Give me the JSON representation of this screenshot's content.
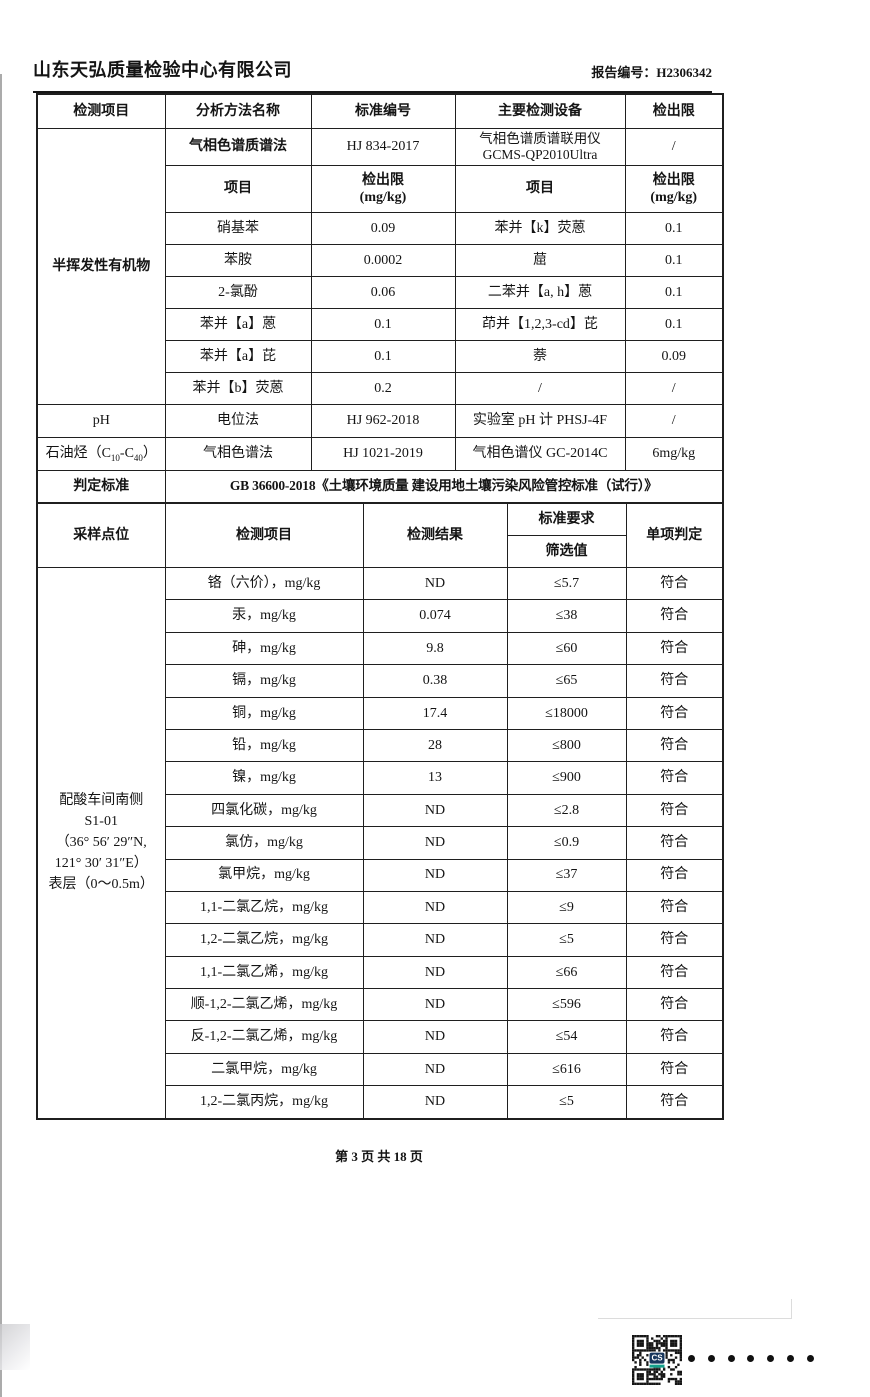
{
  "header": {
    "company": "山东天弘质量检验中心有限公司",
    "report_label": "报告编号：H2306342"
  },
  "method_table": {
    "col_headers": [
      "检测项目",
      "分析方法名称",
      "标准编号",
      "主要检测设备",
      "检出限"
    ],
    "svoc": {
      "group": "半挥发性有机物",
      "method": "气相色谱质谱法",
      "standard": "HJ 834-2017",
      "equipment_line1": "气相色谱质谱联用仪",
      "equipment_line2": "GCMS-QP2010Ultra",
      "limit": "/",
      "sub_item": "项目",
      "sub_limit_l1": "检出限",
      "sub_limit_l2": "(mg/kg)",
      "items": [
        {
          "item_l": "硝基苯",
          "limit_l": "0.09",
          "item_r": "苯并【k】荧蒽",
          "limit_r": "0.1"
        },
        {
          "item_l": "苯胺",
          "limit_l": "0.0002",
          "item_r": "䓛",
          "limit_r": "0.1"
        },
        {
          "item_l": "2-氯酚",
          "limit_l": "0.06",
          "item_r": "二苯并【a, h】蒽",
          "limit_r": "0.1"
        },
        {
          "item_l": "苯并【a】蒽",
          "limit_l": "0.1",
          "item_r": "茚并【1,2,3-cd】芘",
          "limit_r": "0.1"
        },
        {
          "item_l": "苯并【a】芘",
          "limit_l": "0.1",
          "item_r": "萘",
          "limit_r": "0.09"
        },
        {
          "item_l": "苯并【b】荧蒽",
          "limit_l": "0.2",
          "item_r": "/",
          "limit_r": "/"
        }
      ]
    },
    "ph": {
      "item": "pH",
      "method": "电位法",
      "standard": "HJ 962-2018",
      "equipment": "实验室 pH 计 PHSJ-4F",
      "limit": "/"
    },
    "tph": {
      "item_main": "石油烃（C",
      "sub1": "10",
      "item_mid": "-C",
      "sub2": "40",
      "item_end": "）",
      "method": "气相色谱法",
      "standard": "HJ 1021-2019",
      "equipment": "气相色谱仪 GC-2014C",
      "limit": "6mg/kg"
    },
    "criteria": {
      "label": "判定标准",
      "value": "GB 36600-2018《土壤环境质量 建设用地土壤污染风险管控标准（试行）》"
    }
  },
  "result_table": {
    "headers": {
      "point": "采样点位",
      "item": "检测项目",
      "result": "检测结果",
      "requirement": "标准要求",
      "screening": "筛选值",
      "judgment": "单项判定"
    },
    "sample_point": {
      "l1": "配酸车间南侧",
      "l2": "S1-01",
      "l3": "（36° 56′ 29″N,",
      "l4": "121° 30′ 31″E）",
      "l5": "表层（0～0.5m）"
    },
    "rows": [
      {
        "item": "铬（六价），mg/kg",
        "result": "ND",
        "screening": "≤5.7",
        "judgment": "符合"
      },
      {
        "item": "汞，mg/kg",
        "result": "0.074",
        "screening": "≤38",
        "judgment": "符合"
      },
      {
        "item": "砷，mg/kg",
        "result": "9.8",
        "screening": "≤60",
        "judgment": "符合"
      },
      {
        "item": "镉，mg/kg",
        "result": "0.38",
        "screening": "≤65",
        "judgment": "符合"
      },
      {
        "item": "铜，mg/kg",
        "result": "17.4",
        "screening": "≤18000",
        "judgment": "符合"
      },
      {
        "item": "铅，mg/kg",
        "result": "28",
        "screening": "≤800",
        "judgment": "符合"
      },
      {
        "item": "镍，mg/kg",
        "result": "13",
        "screening": "≤900",
        "judgment": "符合"
      },
      {
        "item": "四氯化碳，mg/kg",
        "result": "ND",
        "screening": "≤2.8",
        "judgment": "符合"
      },
      {
        "item": "氯仿，mg/kg",
        "result": "ND",
        "screening": "≤0.9",
        "judgment": "符合"
      },
      {
        "item": "氯甲烷，mg/kg",
        "result": "ND",
        "screening": "≤37",
        "judgment": "符合"
      },
      {
        "item": "1,1-二氯乙烷，mg/kg",
        "result": "ND",
        "screening": "≤9",
        "judgment": "符合"
      },
      {
        "item": "1,2-二氯乙烷，mg/kg",
        "result": "ND",
        "screening": "≤5",
        "judgment": "符合"
      },
      {
        "item": "1,1-二氯乙烯，mg/kg",
        "result": "ND",
        "screening": "≤66",
        "judgment": "符合"
      },
      {
        "item": "顺-1,2-二氯乙烯，mg/kg",
        "result": "ND",
        "screening": "≤596",
        "judgment": "符合"
      },
      {
        "item": "反-1,2-二氯乙烯，mg/kg",
        "result": "ND",
        "screening": "≤54",
        "judgment": "符合"
      },
      {
        "item": "二氯甲烷，mg/kg",
        "result": "ND",
        "screening": "≤616",
        "judgment": "符合"
      },
      {
        "item": "1,2-二氯丙烷，mg/kg",
        "result": "ND",
        "screening": "≤5",
        "judgment": "符合"
      }
    ]
  },
  "footer": {
    "page_text": "第 3 页 共 18 页"
  },
  "stamp": {
    "qr_logo": "CS",
    "dots": 7,
    "qr_logo_color": "#17365c",
    "qr_bar_color": "#14a18c"
  }
}
